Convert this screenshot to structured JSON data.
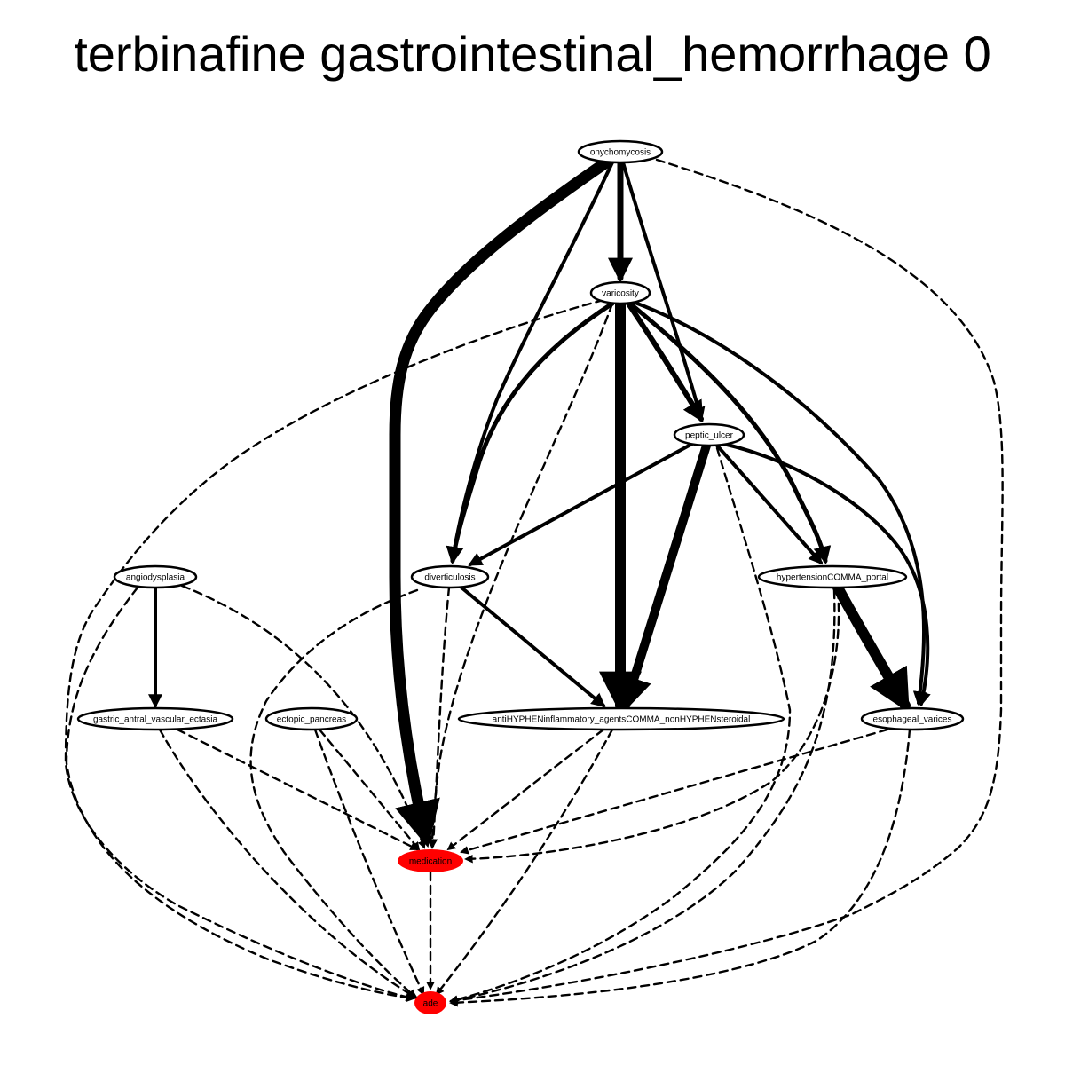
{
  "title": "terbinafine gastrointestinal_hemorrhage 0",
  "colors": {
    "highlight": "#ff0000",
    "node_fill": "#ffffff",
    "edge": "#000000"
  },
  "nodes": {
    "onychomycosis": {
      "label": "onychomycosis",
      "highlight": false
    },
    "varicosity": {
      "label": "varicosity",
      "highlight": false
    },
    "peptic_ulcer": {
      "label": "peptic_ulcer",
      "highlight": false
    },
    "angiodysplasia": {
      "label": "angiodysplasia",
      "highlight": false
    },
    "diverticulosis": {
      "label": "diverticulosis",
      "highlight": false
    },
    "hypertension_portal": {
      "label": "hypertensionCOMMA_portal",
      "highlight": false
    },
    "gave": {
      "label": "gastric_antral_vascular_ectasia",
      "highlight": false
    },
    "ectopic_pancreas": {
      "label": "ectopic_pancreas",
      "highlight": false
    },
    "nsaids": {
      "label": "antiHYPHENinflammatory_agentsCOMMA_nonHYPHENsteroidal",
      "highlight": false
    },
    "esophageal_varices": {
      "label": "esophageal_varices",
      "highlight": false
    },
    "medication": {
      "label": "medication",
      "highlight": true
    },
    "ade": {
      "label": "ade",
      "highlight": true
    }
  },
  "edges": [
    {
      "from": "onychomycosis",
      "to": "medication",
      "style": "solid",
      "weight": 13
    },
    {
      "from": "onychomycosis",
      "to": "varicosity",
      "style": "solid",
      "weight": 7
    },
    {
      "from": "onychomycosis",
      "to": "diverticulosis",
      "style": "solid",
      "weight": 4
    },
    {
      "from": "onychomycosis",
      "to": "peptic_ulcer",
      "style": "solid",
      "weight": 4
    },
    {
      "from": "onychomycosis",
      "to": "ade",
      "style": "dashed",
      "weight": 2
    },
    {
      "from": "varicosity",
      "to": "nsaids",
      "style": "solid",
      "weight": 12
    },
    {
      "from": "varicosity",
      "to": "peptic_ulcer",
      "style": "solid",
      "weight": 6
    },
    {
      "from": "varicosity",
      "to": "diverticulosis",
      "style": "solid",
      "weight": 5
    },
    {
      "from": "varicosity",
      "to": "hypertension_portal",
      "style": "solid",
      "weight": 5
    },
    {
      "from": "varicosity",
      "to": "esophageal_varices",
      "style": "solid",
      "weight": 4
    },
    {
      "from": "varicosity",
      "to": "medication",
      "style": "dashed",
      "weight": 2
    },
    {
      "from": "varicosity",
      "to": "ade",
      "style": "dashed",
      "weight": 2
    },
    {
      "from": "peptic_ulcer",
      "to": "nsaids",
      "style": "solid",
      "weight": 10
    },
    {
      "from": "peptic_ulcer",
      "to": "diverticulosis",
      "style": "solid",
      "weight": 4
    },
    {
      "from": "peptic_ulcer",
      "to": "hypertension_portal",
      "style": "solid",
      "weight": 4
    },
    {
      "from": "peptic_ulcer",
      "to": "esophageal_varices",
      "style": "solid",
      "weight": 4
    },
    {
      "from": "peptic_ulcer",
      "to": "ade",
      "style": "dashed",
      "weight": 2
    },
    {
      "from": "diverticulosis",
      "to": "nsaids",
      "style": "solid",
      "weight": 4
    },
    {
      "from": "diverticulosis",
      "to": "medication",
      "style": "dashed",
      "weight": 2
    },
    {
      "from": "diverticulosis",
      "to": "ade",
      "style": "dashed",
      "weight": 2
    },
    {
      "from": "hypertension_portal",
      "to": "esophageal_varices",
      "style": "solid",
      "weight": 12
    },
    {
      "from": "hypertension_portal",
      "to": "medication",
      "style": "dashed",
      "weight": 2
    },
    {
      "from": "hypertension_portal",
      "to": "ade",
      "style": "dashed",
      "weight": 2
    },
    {
      "from": "angiodysplasia",
      "to": "gave",
      "style": "solid",
      "weight": 4
    },
    {
      "from": "angiodysplasia",
      "to": "medication",
      "style": "dashed",
      "weight": 2
    },
    {
      "from": "angiodysplasia",
      "to": "ade",
      "style": "dashed",
      "weight": 2
    },
    {
      "from": "gave",
      "to": "medication",
      "style": "dashed",
      "weight": 2
    },
    {
      "from": "gave",
      "to": "ade",
      "style": "dashed",
      "weight": 2
    },
    {
      "from": "ectopic_pancreas",
      "to": "medication",
      "style": "dashed",
      "weight": 2
    },
    {
      "from": "ectopic_pancreas",
      "to": "ade",
      "style": "dashed",
      "weight": 2
    },
    {
      "from": "nsaids",
      "to": "medication",
      "style": "dashed",
      "weight": 2
    },
    {
      "from": "nsaids",
      "to": "ade",
      "style": "dashed",
      "weight": 2
    },
    {
      "from": "esophageal_varices",
      "to": "medication",
      "style": "dashed",
      "weight": 2
    },
    {
      "from": "esophageal_varices",
      "to": "ade",
      "style": "dashed",
      "weight": 2
    },
    {
      "from": "medication",
      "to": "ade",
      "style": "dashed",
      "weight": 2
    }
  ]
}
